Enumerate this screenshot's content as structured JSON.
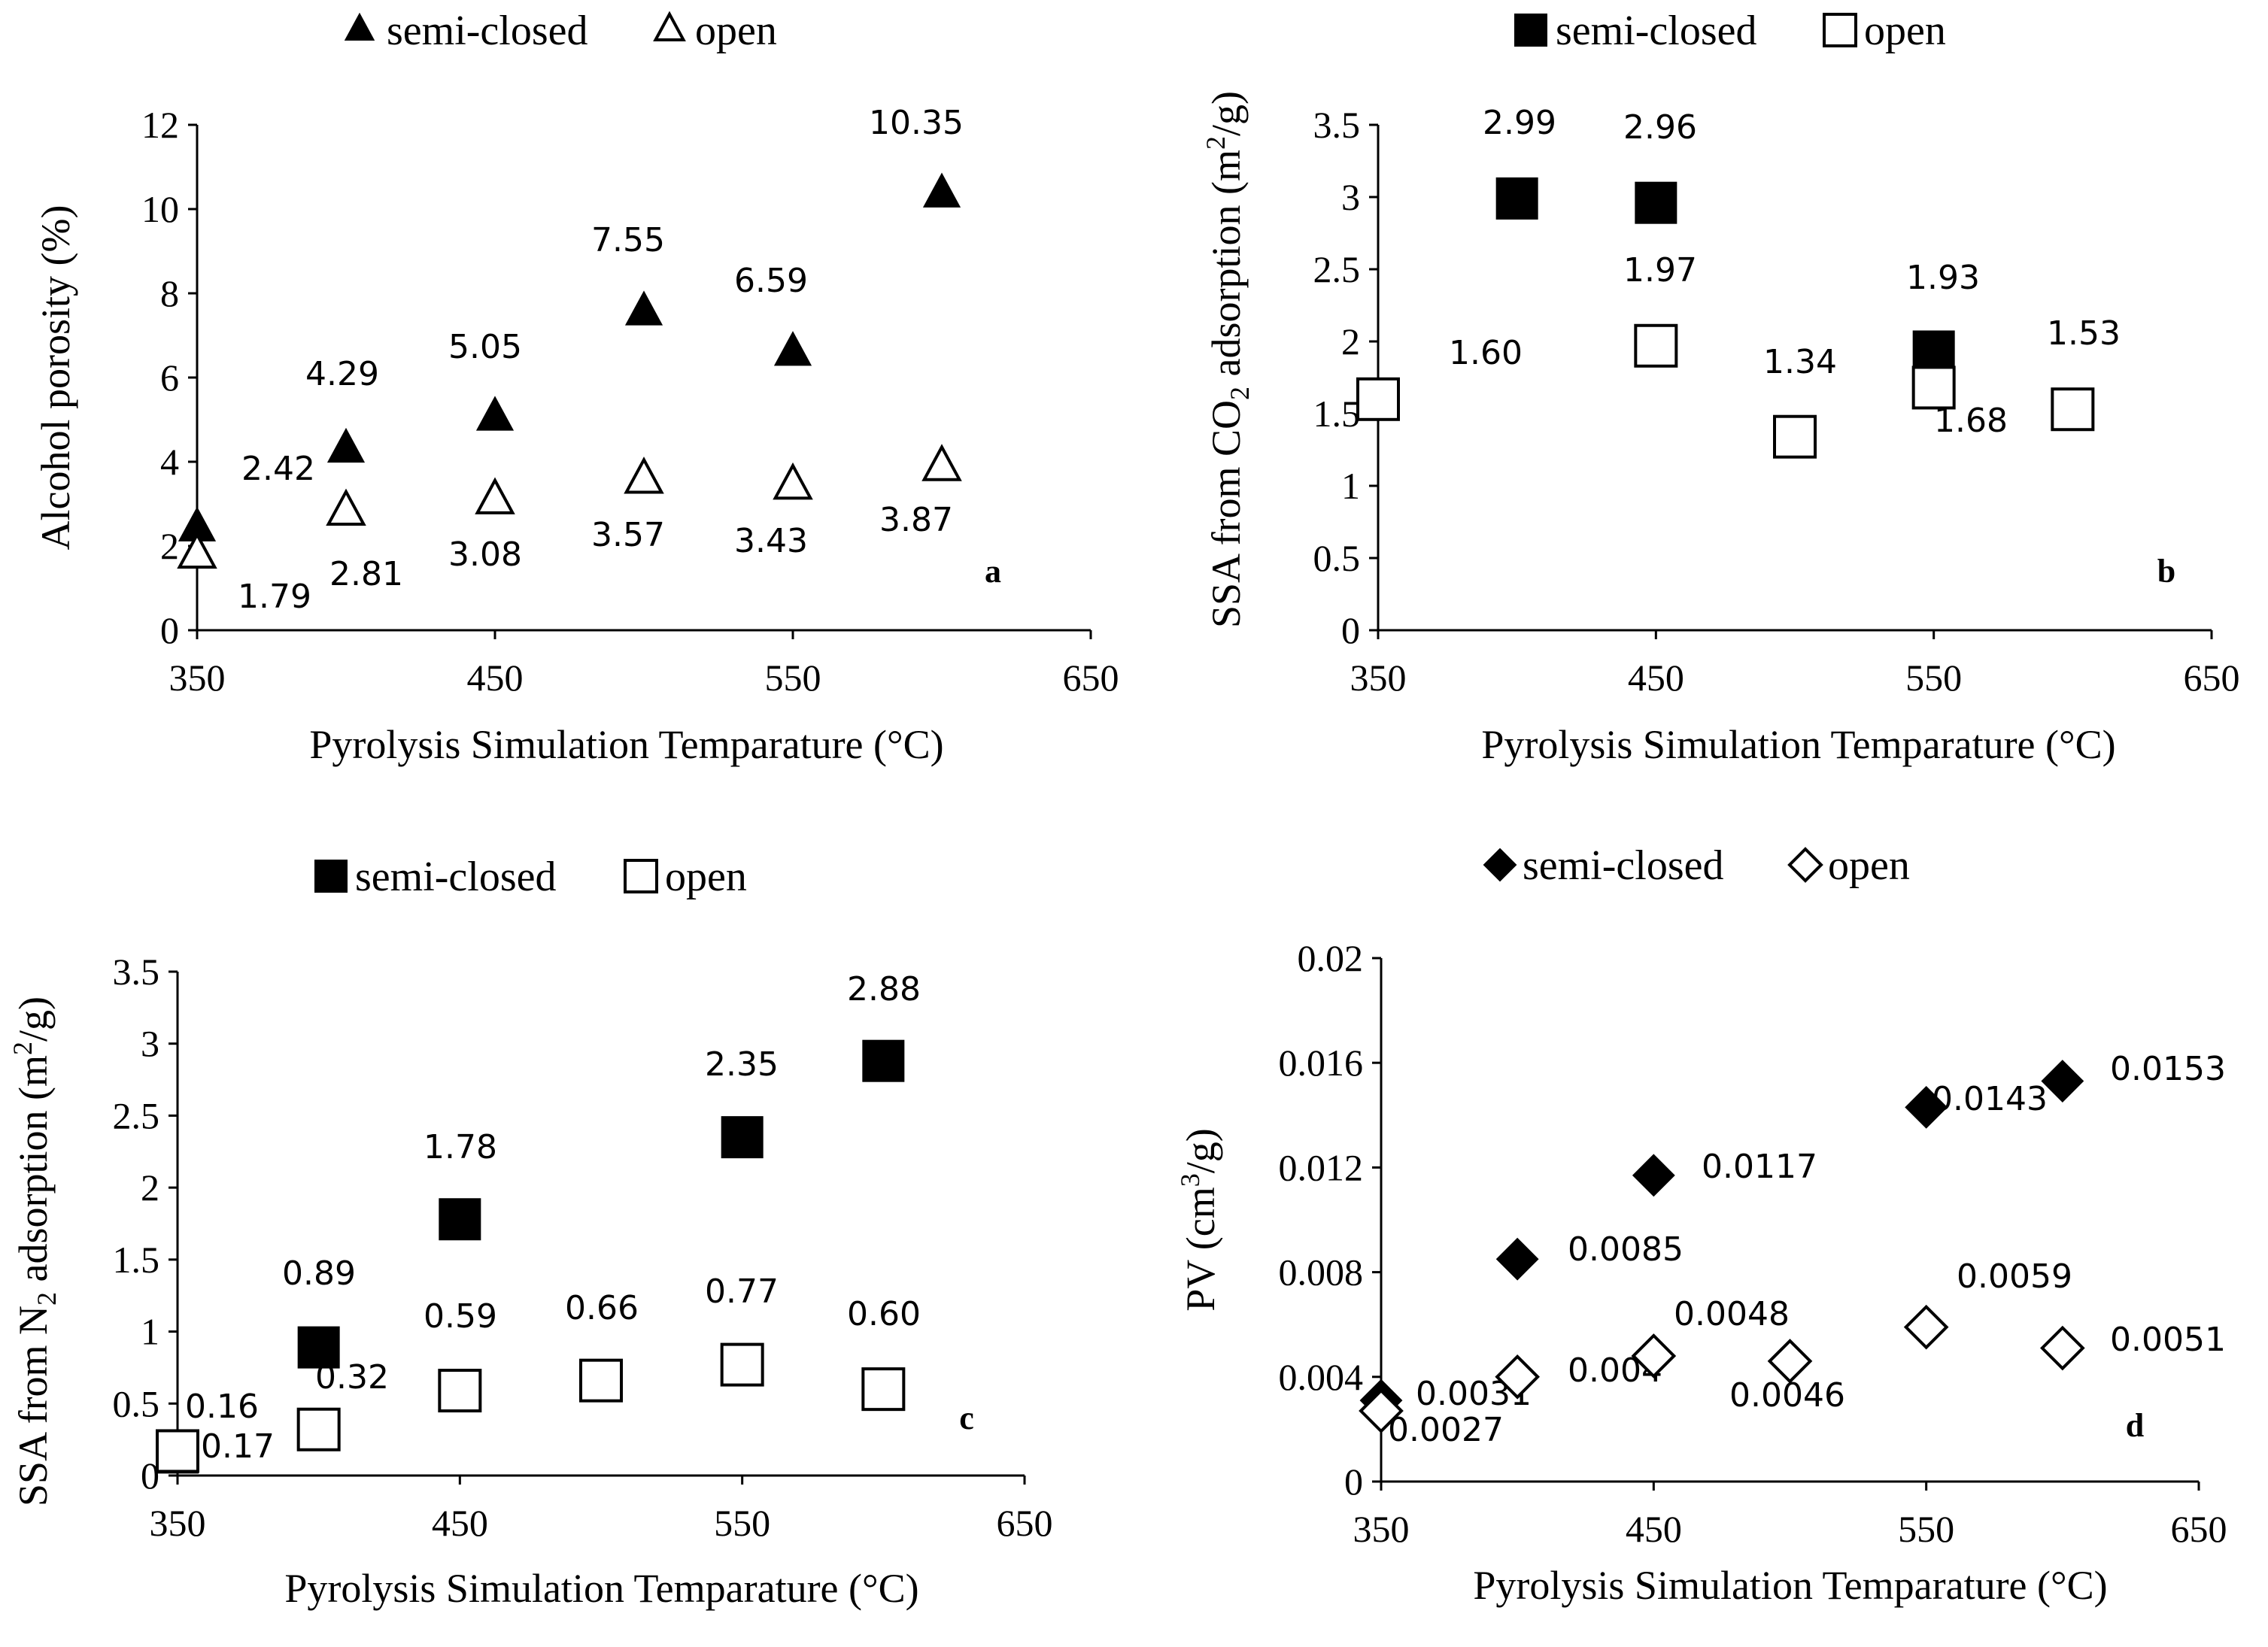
{
  "figure": {
    "background": "#ffffff",
    "ink_color": "#000000"
  },
  "chart_data": [
    {
      "type": "scatter",
      "panel_label": "a",
      "title": "",
      "xlabel": "Pyrolysis Simulation Temparature (°C)",
      "ylabel": "Alcohol porosity (%)",
      "xlim": [
        350,
        650
      ],
      "ylim": [
        0,
        12
      ],
      "x_ticks": [
        350,
        450,
        550,
        650
      ],
      "y_ticks": [
        0,
        2,
        4,
        6,
        8,
        10,
        12
      ],
      "grid": false,
      "legend_position": "top-center",
      "series": [
        {
          "name": "semi-closed",
          "marker": "triangle-filled",
          "x": [
            350,
            400,
            450,
            500,
            550,
            600
          ],
          "y": [
            2.42,
            4.29,
            5.05,
            7.55,
            6.59,
            10.35
          ],
          "labels": [
            "2.42",
            "4.29",
            "5.05",
            "7.55",
            "6.59",
            "10.35"
          ]
        },
        {
          "name": "open",
          "marker": "triangle-open",
          "x": [
            350,
            400,
            450,
            500,
            550,
            600
          ],
          "y": [
            1.79,
            2.81,
            3.08,
            3.57,
            3.43,
            3.87
          ],
          "labels": [
            "1.79",
            "2.81",
            "3.08",
            "3.57",
            "3.43",
            "3.87"
          ]
        }
      ]
    },
    {
      "type": "scatter",
      "panel_label": "b",
      "title": "",
      "xlabel": "Pyrolysis Simulation Temparature (°C)",
      "ylabel_parts": [
        "SSA from CO",
        "2",
        " adsorption (m",
        "2",
        "/g)"
      ],
      "xlim": [
        350,
        650
      ],
      "ylim": [
        0,
        3.5
      ],
      "x_ticks": [
        350,
        450,
        550,
        650
      ],
      "y_ticks": [
        0,
        0.5,
        1,
        1.5,
        2,
        2.5,
        3,
        3.5
      ],
      "grid": false,
      "legend_position": "top-center",
      "series": [
        {
          "name": "semi-closed",
          "marker": "square-filled",
          "x": [
            400,
            450,
            550
          ],
          "y": [
            2.99,
            2.96,
            1.93
          ],
          "labels": [
            "2.99",
            "2.96",
            "1.93"
          ]
        },
        {
          "name": "open",
          "marker": "square-open",
          "x": [
            350,
            450,
            500,
            550,
            600
          ],
          "y": [
            1.6,
            1.97,
            1.34,
            1.68,
            1.53
          ],
          "labels": [
            "1.60",
            "1.97",
            "1.34",
            "1.68",
            "1.53"
          ]
        }
      ]
    },
    {
      "type": "scatter",
      "panel_label": "c",
      "title": "",
      "xlabel": "Pyrolysis Simulation Temparature (°C)",
      "ylabel_parts": [
        "SSA from N",
        "2",
        " adsorption (m",
        "2",
        "/g)"
      ],
      "xlim": [
        350,
        650
      ],
      "ylim": [
        0,
        3.5
      ],
      "x_ticks": [
        350,
        450,
        550,
        650
      ],
      "y_ticks": [
        0,
        0.5,
        1,
        1.5,
        2,
        2.5,
        3,
        3.5
      ],
      "grid": false,
      "legend_position": "top-center",
      "series": [
        {
          "name": "semi-closed",
          "marker": "square-filled",
          "x": [
            350,
            400,
            450,
            550,
            600
          ],
          "y": [
            0.16,
            0.89,
            1.78,
            2.35,
            2.88
          ],
          "labels": [
            "0.16",
            "0.89",
            "1.78",
            "2.35",
            "2.88"
          ]
        },
        {
          "name": "open",
          "marker": "square-open",
          "x": [
            350,
            400,
            450,
            500,
            550,
            600
          ],
          "y": [
            0.17,
            0.32,
            0.59,
            0.66,
            0.77,
            0.6
          ],
          "labels": [
            "0.17",
            "0.32",
            "0.59",
            "0.66",
            "0.77",
            "0.60"
          ]
        }
      ]
    },
    {
      "type": "scatter",
      "panel_label": "d",
      "title": "",
      "xlabel": "Pyrolysis Simulation Temparature (°C)",
      "ylabel_parts": [
        "PV (cm",
        "3",
        "/g)"
      ],
      "xlim": [
        350,
        650
      ],
      "ylim": [
        0,
        0.02
      ],
      "x_ticks": [
        350,
        450,
        550,
        650
      ],
      "y_ticks": [
        0,
        0.004,
        0.008,
        0.012,
        0.016,
        0.02
      ],
      "grid": false,
      "legend_position": "top-center",
      "series": [
        {
          "name": "semi-closed",
          "marker": "diamond-filled",
          "x": [
            350,
            400,
            450,
            550,
            600
          ],
          "y": [
            0.0031,
            0.0085,
            0.0117,
            0.0143,
            0.0153
          ],
          "labels": [
            "0.0031",
            "0.0085",
            "0.0117",
            "0.0143",
            "0.0153"
          ]
        },
        {
          "name": "open",
          "marker": "diamond-open",
          "x": [
            350,
            400,
            450,
            500,
            550,
            600
          ],
          "y": [
            0.0027,
            0.004,
            0.0048,
            0.0046,
            0.0059,
            0.0051
          ],
          "labels": [
            "0.0027",
            "0.004",
            "0.0048",
            "0.0046",
            "0.0059",
            "0.0051"
          ]
        }
      ]
    }
  ]
}
